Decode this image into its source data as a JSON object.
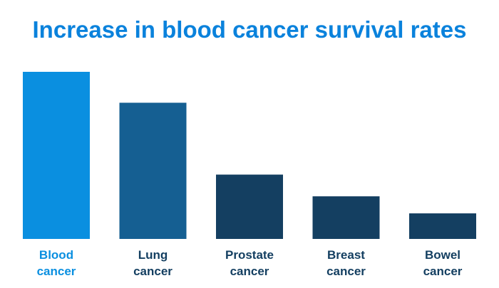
{
  "chart_data": {
    "type": "bar",
    "title": "Increase in blood cancer survival rates",
    "categories": [
      [
        "Blood",
        "cancer"
      ],
      [
        "Lung",
        "cancer"
      ],
      [
        "Prostate",
        "cancer"
      ],
      [
        "Breast",
        "cancer"
      ],
      [
        "Bowel",
        "cancer"
      ]
    ],
    "values": [
      100,
      81.5,
      38.5,
      25.5,
      15.3
    ],
    "ylim": [
      0,
      100
    ],
    "xlabel": "",
    "ylabel": "",
    "grid": false,
    "legend": "none",
    "bar_colors": [
      "#0a8fe0",
      "#155f92",
      "#143f61",
      "#143f61",
      "#143f61"
    ],
    "label_colors": [
      "#0a8fe0",
      "#143f61",
      "#143f61",
      "#143f61",
      "#143f61"
    ],
    "title_color": "#0a82dc"
  }
}
